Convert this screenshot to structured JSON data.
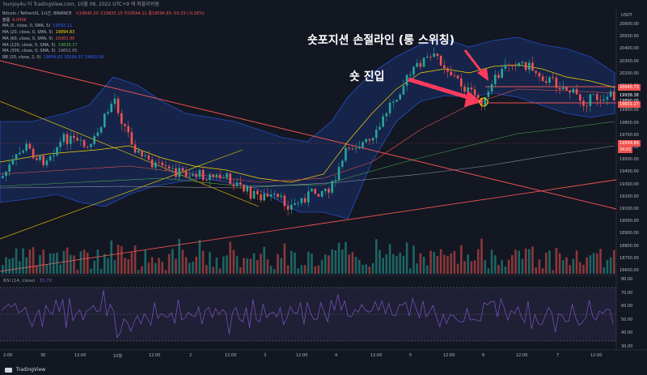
{
  "header": {
    "author_line": "hunjoy4u 이 TradingView.com, 10월 08, 2022 UTC+9 에 퍼블리쉬됨"
  },
  "symbol_line": {
    "name": "Bitcoin / TetherUS, 1시간, BINANCE",
    "ohlc": "시19645.20 고19655.15 저19544.11 종19594.89 -50.33 (-0.26%)"
  },
  "indicators": [
    {
      "label": "볼륨",
      "value": "8.043K",
      "color": "#ef5350"
    },
    {
      "label": "MA (5, close, 0, SMA, 5)",
      "value": "19592.11",
      "color": "#2962ff"
    },
    {
      "label": "MA (20, close, 0, SMA, 5)",
      "value": "19894.83",
      "color": "#f7d300"
    },
    {
      "label": "MA (60, close, 0, SMA, 5)",
      "value": "20063.90",
      "color": "#ef5350"
    },
    {
      "label": "MA (120, close, 0, SMA, 5)",
      "value": "19838.37",
      "color": "#4caf50"
    },
    {
      "label": "MA (300, close, 0, SMA, 5)",
      "value": "19652.85",
      "color": "#9598a1"
    },
    {
      "label": "BB (20, close, 2, 0)",
      "value": "19894.83  20596.97  19692.68",
      "color": "#2962ff"
    }
  ],
  "rsi": {
    "label": "RSI (14, close)",
    "value": "35.70"
  },
  "annotations": {
    "short_stoploss": "숏포지션 손절라인 (롱 스위칭)",
    "short_entry": "숏 진입"
  },
  "price_axis": {
    "unit": "USDT",
    "labels": [
      "20600.00",
      "20500.00",
      "20400.00",
      "20300.00",
      "20200.00",
      "20100.00",
      "20000.00",
      "19900.00",
      "19800.00",
      "19700.00",
      "19600.00",
      "19500.00",
      "19400.00",
      "19300.00",
      "19200.00",
      "19100.00",
      "19000.00",
      "18900.00",
      "18800.00",
      "18700.00",
      "18600.00"
    ],
    "badges": [
      {
        "text": "20045.73",
        "color": "#ef5350"
      },
      {
        "text": "19938.38",
        "color": "#131722"
      },
      {
        "text": "19890.00",
        "color": "#131722"
      },
      {
        "text": "19831.27",
        "color": "#ef5350"
      },
      {
        "text": "19594.89",
        "color": "#ef5350"
      },
      {
        "text": "34:01",
        "color": "#ef5350"
      }
    ]
  },
  "rsi_axis": {
    "labels": [
      "80.00",
      "70.00",
      "60.00",
      "50.00",
      "40.00",
      "30.00"
    ]
  },
  "time_axis": {
    "labels": [
      "2:00",
      "30",
      "12:00",
      "10월",
      "12:00",
      "2",
      "12:00",
      "3",
      "12:00",
      "4",
      "12:00",
      "5",
      "12:00",
      "6",
      "12:00",
      "7",
      "12:00"
    ]
  },
  "footer": {
    "brand": "TradingView"
  },
  "colors": {
    "up": "#26a69a",
    "down": "#ef5350",
    "background": "#131722"
  }
}
